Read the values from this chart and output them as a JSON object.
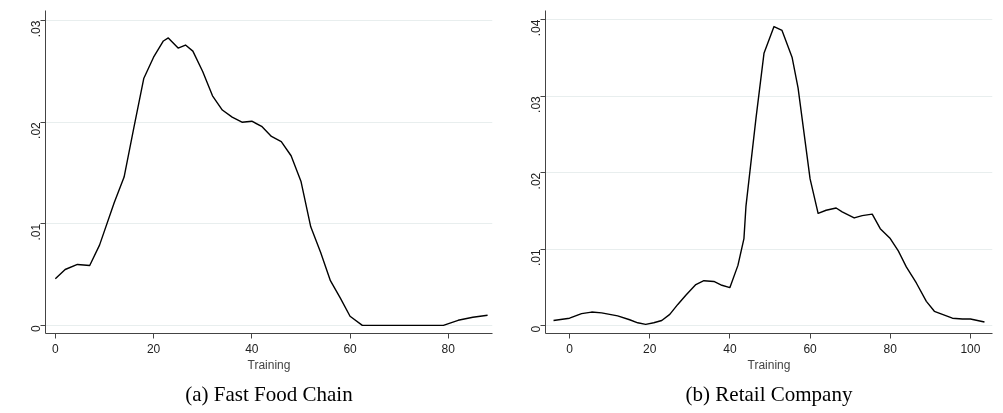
{
  "chart_data": [
    {
      "type": "line",
      "title": "(a) Fast Food Chain",
      "xlabel": "Training",
      "grid": "y",
      "marker": "none",
      "line_style": "solid",
      "x": [
        0,
        2,
        4.5,
        7,
        9,
        12,
        14,
        16,
        18,
        20,
        22,
        23,
        25,
        26.5,
        28,
        30,
        32,
        34,
        36,
        38,
        40,
        42,
        44,
        46,
        48,
        50,
        52,
        54,
        56,
        58,
        60,
        62.5,
        79,
        82,
        85,
        88
      ],
      "series": [
        {
          "color": "#000000",
          "values": [
            0.0046,
            0.0055,
            0.006,
            0.0059,
            0.0079,
            0.0121,
            0.0146,
            0.0195,
            0.0243,
            0.0264,
            0.028,
            0.0283,
            0.0273,
            0.0276,
            0.027,
            0.025,
            0.0226,
            0.0212,
            0.0205,
            0.02,
            0.0201,
            0.0196,
            0.0186,
            0.0181,
            0.0167,
            0.0142,
            0.0097,
            0.0072,
            0.0044,
            0.0027,
            0.0009,
            0,
            0,
            0.0005,
            0.0008,
            0.001
          ]
        }
      ],
      "xlim": [
        -2,
        89
      ],
      "ylim": [
        -0.0008,
        0.031
      ],
      "xticks": [
        0,
        20,
        40,
        60,
        80
      ],
      "yticks": [
        {
          "value": 0,
          "label": "0"
        },
        {
          "value": 0.01,
          "label": ".01"
        },
        {
          "value": 0.02,
          "label": ".02"
        },
        {
          "value": 0.03,
          "label": ".03"
        }
      ]
    },
    {
      "type": "line",
      "title": "(b) Retail Company",
      "xlabel": "Training",
      "grid": "y",
      "marker": "none",
      "line_style": "solid",
      "x": [
        -4,
        0,
        3,
        5.5,
        8,
        12,
        15,
        17,
        19,
        21,
        23,
        25,
        27,
        29,
        31.5,
        33.5,
        36,
        38,
        40,
        42,
        43.5,
        44,
        46.5,
        48.5,
        51,
        53,
        55.5,
        57,
        60,
        62,
        64,
        66.5,
        68,
        71,
        73,
        75.5,
        77.5,
        80,
        82,
        84,
        86.5,
        89,
        91,
        93,
        95.5,
        98,
        100,
        103.5
      ],
      "series": [
        {
          "color": "#000000",
          "values": [
            0.0007,
            0.001,
            0.0016,
            0.0018,
            0.0017,
            0.0013,
            0.0008,
            0.0004,
            0.0002,
            0.0004,
            0.0007,
            0.0015,
            0.0028,
            0.004,
            0.0054,
            0.0059,
            0.0058,
            0.0053,
            0.005,
            0.0079,
            0.0114,
            0.0156,
            0.0271,
            0.0356,
            0.0391,
            0.0386,
            0.0351,
            0.0311,
            0.0192,
            0.0147,
            0.0151,
            0.0154,
            0.0149,
            0.0141,
            0.0144,
            0.0146,
            0.0127,
            0.0114,
            0.0098,
            0.0077,
            0.0056,
            0.0032,
            0.0019,
            0.0015,
            0.001,
            0.0009,
            0.0009,
            0.0005
          ]
        }
      ],
      "xlim": [
        -6,
        105.5
      ],
      "ylim": [
        -0.001,
        0.0412
      ],
      "xticks": [
        0,
        20,
        40,
        60,
        80,
        100
      ],
      "yticks": [
        {
          "value": 0,
          "label": "0"
        },
        {
          "value": 0.01,
          "label": ".01"
        },
        {
          "value": 0.02,
          "label": ".02"
        },
        {
          "value": 0.03,
          "label": ".03"
        },
        {
          "value": 0.04,
          "label": ".04"
        }
      ]
    }
  ]
}
